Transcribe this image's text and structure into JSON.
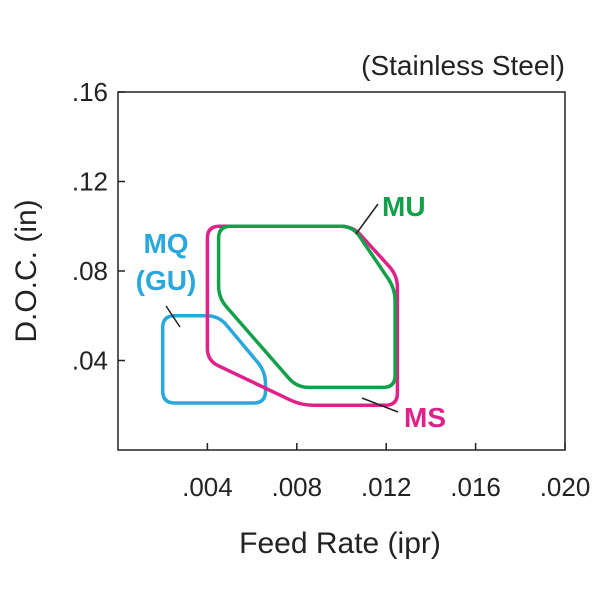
{
  "chart_data": {
    "type": "area",
    "subtitle": "(Stainless Steel)",
    "xlabel": "Feed Rate (ipr)",
    "ylabel": "D.O.C. (in)",
    "xlim": [
      0.0,
      0.02
    ],
    "ylim": [
      0.0,
      0.16
    ],
    "x_ticks": [
      0.004,
      0.008,
      0.012,
      0.016,
      0.02
    ],
    "x_tick_labels": [
      ".004",
      ".008",
      ".012",
      ".016",
      ".020"
    ],
    "y_ticks": [
      0.04,
      0.08,
      0.12,
      0.16
    ],
    "y_tick_labels": [
      ".04",
      ".08",
      ".12",
      ".16"
    ],
    "grid": false,
    "series": [
      {
        "name": "MQ (GU)",
        "label_lines": [
          "MQ",
          "(GU)"
        ],
        "color": "#29a8de",
        "outline": [
          [
            0.002,
            0.06
          ],
          [
            0.0045,
            0.06
          ],
          [
            0.0066,
            0.035
          ],
          [
            0.0066,
            0.021
          ],
          [
            0.002,
            0.021
          ]
        ]
      },
      {
        "name": "MS",
        "label_lines": [
          "MS"
        ],
        "color": "#e0218a",
        "outline": [
          [
            0.004,
            0.1
          ],
          [
            0.0105,
            0.1
          ],
          [
            0.0125,
            0.078
          ],
          [
            0.0125,
            0.02
          ],
          [
            0.0082,
            0.02
          ],
          [
            0.004,
            0.04
          ]
        ]
      },
      {
        "name": "MU",
        "label_lines": [
          "MU"
        ],
        "color": "#13a04a",
        "outline": [
          [
            0.0045,
            0.1
          ],
          [
            0.0105,
            0.1
          ],
          [
            0.0124,
            0.072
          ],
          [
            0.0124,
            0.028
          ],
          [
            0.008,
            0.028
          ],
          [
            0.0045,
            0.068
          ]
        ]
      }
    ]
  }
}
